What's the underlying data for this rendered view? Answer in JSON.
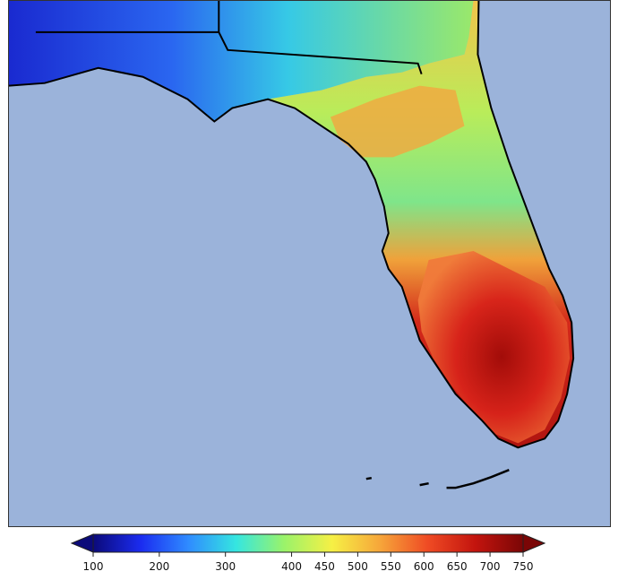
{
  "map": {
    "water_color": "#9bb3da",
    "border_color": "#000000",
    "regions": [
      {
        "id": "panhandle-west",
        "color": "#1f2fd6"
      },
      {
        "id": "panhandle-east",
        "color": "#3fd6d0"
      },
      {
        "id": "north-central",
        "color": "#f2c24c"
      },
      {
        "id": "central",
        "color": "#9ae86a"
      },
      {
        "id": "south",
        "color": "#c01a10"
      }
    ]
  },
  "colorbar": {
    "ticks": [
      "100",
      "200",
      "300",
      "400",
      "450",
      "500",
      "550",
      "600",
      "650",
      "700",
      "750"
    ],
    "min": 100,
    "max": 750,
    "extend": "both",
    "colors": [
      "#0b0a7a",
      "#1b2cf0",
      "#2f8cff",
      "#35e6e0",
      "#9af36a",
      "#f6f045",
      "#f6a63a",
      "#ef4b24",
      "#c3140e",
      "#7a0606"
    ]
  }
}
